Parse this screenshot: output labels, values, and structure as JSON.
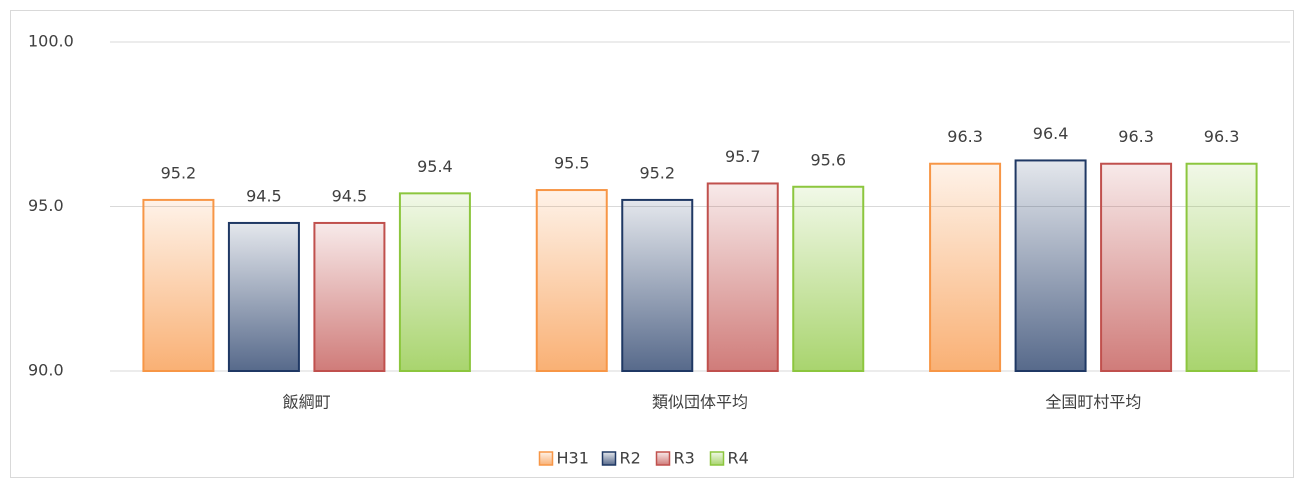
{
  "chart_data": {
    "type": "bar",
    "categories": [
      "飯綱町",
      "類似団体平均",
      "全国町村平均"
    ],
    "series": [
      {
        "name": "H31",
        "color": "#f79646",
        "values": [
          95.2,
          95.5,
          96.3
        ]
      },
      {
        "name": "R2",
        "color": "#1f3864",
        "values": [
          94.5,
          95.2,
          96.4
        ]
      },
      {
        "name": "R3",
        "color": "#c0504d",
        "values": [
          94.5,
          95.7,
          96.3
        ]
      },
      {
        "name": "R4",
        "color": "#8cc63e",
        "values": [
          95.4,
          95.6,
          96.3
        ]
      }
    ],
    "ylim": [
      90,
      100
    ],
    "yticks": [
      {
        "value": 90,
        "label": "90.0"
      },
      {
        "value": 95,
        "label": "95.0"
      },
      {
        "value": 100,
        "label": "100.0"
      }
    ],
    "grid": true,
    "legend": "bottom"
  }
}
